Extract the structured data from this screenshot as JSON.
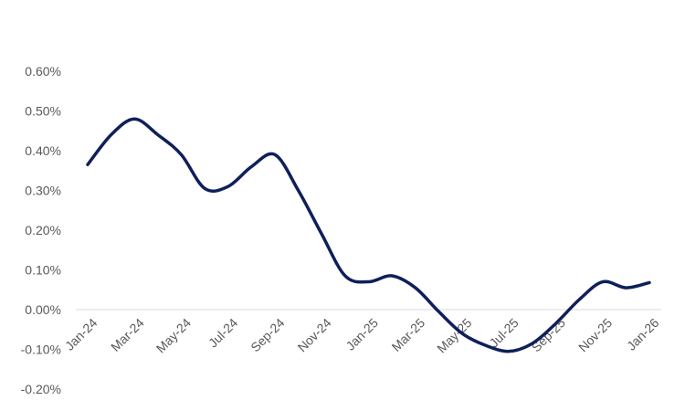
{
  "chart_data": {
    "type": "line",
    "title": "",
    "xlabel": "",
    "ylabel": "",
    "y_ticks": [
      "0.60%",
      "0.50%",
      "0.40%",
      "0.30%",
      "0.20%",
      "0.10%",
      "0.00%",
      "-0.10%",
      "-0.20%"
    ],
    "y_tick_values": [
      0.6,
      0.5,
      0.4,
      0.3,
      0.2,
      0.1,
      0.0,
      -0.1,
      -0.2
    ],
    "ylim": [
      -0.2,
      0.6
    ],
    "x_tick_labels": [
      "Jan-24",
      "Mar-24",
      "May-24",
      "Jul-24",
      "Sep-24",
      "Nov-24",
      "Jan-25",
      "Mar-25",
      "May-25",
      "Jul-25",
      "Sep-25",
      "Nov-25",
      "Jan-26"
    ],
    "grid": false,
    "legend": "none",
    "categories": [
      "Jan-24",
      "Feb-24",
      "Mar-24",
      "Apr-24",
      "May-24",
      "Jun-24",
      "Jul-24",
      "Aug-24",
      "Sep-24",
      "Oct-24",
      "Nov-24",
      "Dec-24",
      "Jan-25",
      "Feb-25",
      "Mar-25",
      "Apr-25",
      "May-25",
      "Jun-25",
      "Jul-25",
      "Aug-25",
      "Sep-25",
      "Oct-25",
      "Nov-25",
      "Dec-25",
      "Jan-26"
    ],
    "series": [
      {
        "values": [
          0.365,
          0.44,
          0.48,
          0.44,
          0.39,
          0.305,
          0.31,
          0.36,
          0.39,
          0.3,
          0.19,
          0.085,
          0.07,
          0.085,
          0.055,
          -0.005,
          -0.06,
          -0.09,
          -0.105,
          -0.085,
          -0.035,
          0.025,
          0.07,
          0.055,
          0.068
        ],
        "color": "#0e1f5b"
      }
    ]
  }
}
